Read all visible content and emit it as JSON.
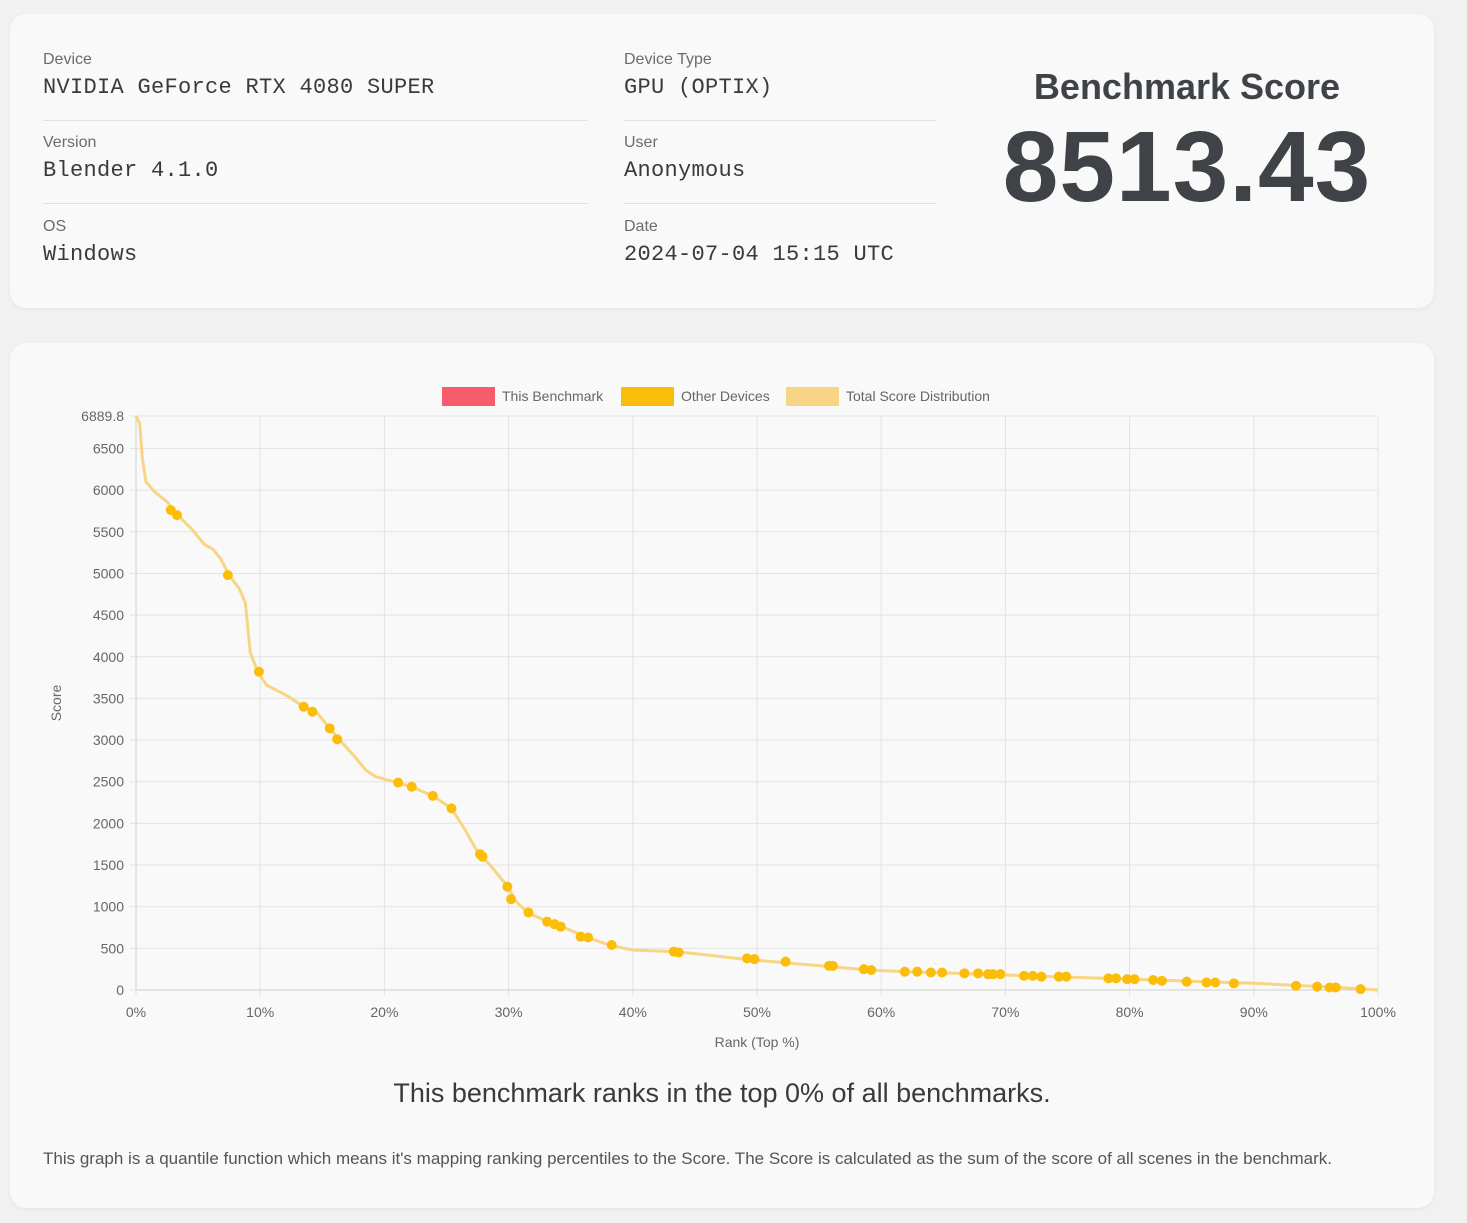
{
  "info": {
    "device_label": "Device",
    "device_value": "NVIDIA GeForce RTX 4080 SUPER",
    "version_label": "Version",
    "version_value": "Blender 4.1.0",
    "os_label": "OS",
    "os_value": "Windows",
    "device_type_label": "Device Type",
    "device_type_value": "GPU (OPTIX)",
    "user_label": "User",
    "user_value": "Anonymous",
    "date_label": "Date",
    "date_value": "2024-07-04 15:15 UTC"
  },
  "score": {
    "title": "Benchmark Score",
    "value": "8513.43"
  },
  "rank_text": "This benchmark ranks in the top 0% of all benchmarks.",
  "footnote": "This graph is a quantile function which means it's mapping ranking percentiles to the Score. The Score is calculated as the sum of the score of all scenes in the benchmark.",
  "colors": {
    "this_benchmark": "#f65c6b",
    "other_devices": "#fbbd08",
    "distribution": "#f7d584",
    "grid": "#e3e3e3",
    "axis_text": "#666666"
  },
  "chart_data": {
    "type": "line",
    "xlabel": "Rank (Top %)",
    "ylabel": "Score",
    "xlim": [
      0,
      100
    ],
    "ylim": [
      0,
      6889.8
    ],
    "x_ticks": [
      "0%",
      "10%",
      "20%",
      "30%",
      "40%",
      "50%",
      "60%",
      "70%",
      "80%",
      "90%",
      "100%"
    ],
    "y_ticks": [
      "6889.8",
      "6500",
      "6000",
      "5500",
      "5000",
      "4500",
      "4000",
      "3500",
      "3000",
      "2500",
      "2000",
      "1500",
      "1000",
      "500",
      "0"
    ],
    "grid": true,
    "legend_position": "top",
    "legend": [
      "This Benchmark",
      "Other Devices",
      "Total Score Distribution"
    ],
    "series": [
      {
        "name": "Total Score Distribution",
        "points": [
          [
            0,
            6889.8
          ],
          [
            0.3,
            6800
          ],
          [
            0.5,
            6400
          ],
          [
            0.8,
            6100
          ],
          [
            1.5,
            5980
          ],
          [
            2.5,
            5860
          ],
          [
            3.5,
            5680
          ],
          [
            4.5,
            5530
          ],
          [
            5.5,
            5350
          ],
          [
            6.2,
            5290
          ],
          [
            6.8,
            5180
          ],
          [
            7.5,
            4980
          ],
          [
            8.3,
            4820
          ],
          [
            8.8,
            4650
          ],
          [
            9.2,
            4050
          ],
          [
            9.8,
            3820
          ],
          [
            10.5,
            3660
          ],
          [
            12.3,
            3520
          ],
          [
            13.5,
            3400
          ],
          [
            14.5,
            3340
          ],
          [
            15.6,
            3140
          ],
          [
            16.4,
            3000
          ],
          [
            17.5,
            2820
          ],
          [
            18.5,
            2640
          ],
          [
            19.3,
            2560
          ],
          [
            21,
            2490
          ],
          [
            22.2,
            2440
          ],
          [
            23.9,
            2330
          ],
          [
            25.4,
            2180
          ],
          [
            26.5,
            1920
          ],
          [
            27.6,
            1630
          ],
          [
            28.4,
            1520
          ],
          [
            30,
            1230
          ],
          [
            30.5,
            1080
          ],
          [
            31.5,
            930
          ],
          [
            33.3,
            810
          ],
          [
            34.3,
            760
          ],
          [
            36.5,
            620
          ],
          [
            38.3,
            530
          ],
          [
            40,
            480
          ],
          [
            43.5,
            460
          ],
          [
            46,
            420
          ],
          [
            49,
            370
          ],
          [
            52,
            330
          ],
          [
            56,
            280
          ],
          [
            59,
            240
          ],
          [
            62,
            220
          ],
          [
            66,
            200
          ],
          [
            70,
            180
          ],
          [
            74,
            160
          ],
          [
            78,
            140
          ],
          [
            82,
            120
          ],
          [
            86,
            100
          ],
          [
            90,
            80
          ],
          [
            94,
            50
          ],
          [
            97,
            30
          ],
          [
            100,
            0
          ]
        ]
      },
      {
        "name": "Other Devices",
        "points": [
          [
            2.8,
            5760
          ],
          [
            3.3,
            5700
          ],
          [
            7.4,
            4980
          ],
          [
            9.9,
            3820
          ],
          [
            13.5,
            3400
          ],
          [
            14.2,
            3340
          ],
          [
            15.6,
            3140
          ],
          [
            16.2,
            3010
          ],
          [
            21.1,
            2490
          ],
          [
            22.2,
            2440
          ],
          [
            23.9,
            2330
          ],
          [
            25.4,
            2180
          ],
          [
            27.7,
            1630
          ],
          [
            27.9,
            1600
          ],
          [
            29.9,
            1240
          ],
          [
            30.2,
            1090
          ],
          [
            31.6,
            930
          ],
          [
            33.1,
            820
          ],
          [
            33.7,
            790
          ],
          [
            34.2,
            760
          ],
          [
            35.8,
            640
          ],
          [
            36.4,
            630
          ],
          [
            38.3,
            540
          ],
          [
            43.3,
            460
          ],
          [
            43.7,
            450
          ],
          [
            49.2,
            380
          ],
          [
            49.8,
            370
          ],
          [
            52.3,
            340
          ],
          [
            55.8,
            290
          ],
          [
            56.1,
            290
          ],
          [
            58.6,
            250
          ],
          [
            59.2,
            240
          ],
          [
            61.9,
            220
          ],
          [
            62.9,
            220
          ],
          [
            64,
            210
          ],
          [
            64.9,
            210
          ],
          [
            66.7,
            200
          ],
          [
            67.8,
            200
          ],
          [
            68.6,
            190
          ],
          [
            69,
            190
          ],
          [
            69.6,
            190
          ],
          [
            71.5,
            170
          ],
          [
            72.2,
            170
          ],
          [
            72.9,
            160
          ],
          [
            74.3,
            160
          ],
          [
            74.9,
            160
          ],
          [
            78.3,
            140
          ],
          [
            78.9,
            140
          ],
          [
            79.8,
            130
          ],
          [
            80.4,
            130
          ],
          [
            81.9,
            120
          ],
          [
            82.6,
            110
          ],
          [
            84.6,
            100
          ],
          [
            86.2,
            90
          ],
          [
            86.9,
            90
          ],
          [
            88.4,
            80
          ],
          [
            93.4,
            50
          ],
          [
            95.1,
            40
          ],
          [
            96.1,
            30
          ],
          [
            96.6,
            30
          ],
          [
            98.6,
            10
          ]
        ]
      }
    ]
  }
}
